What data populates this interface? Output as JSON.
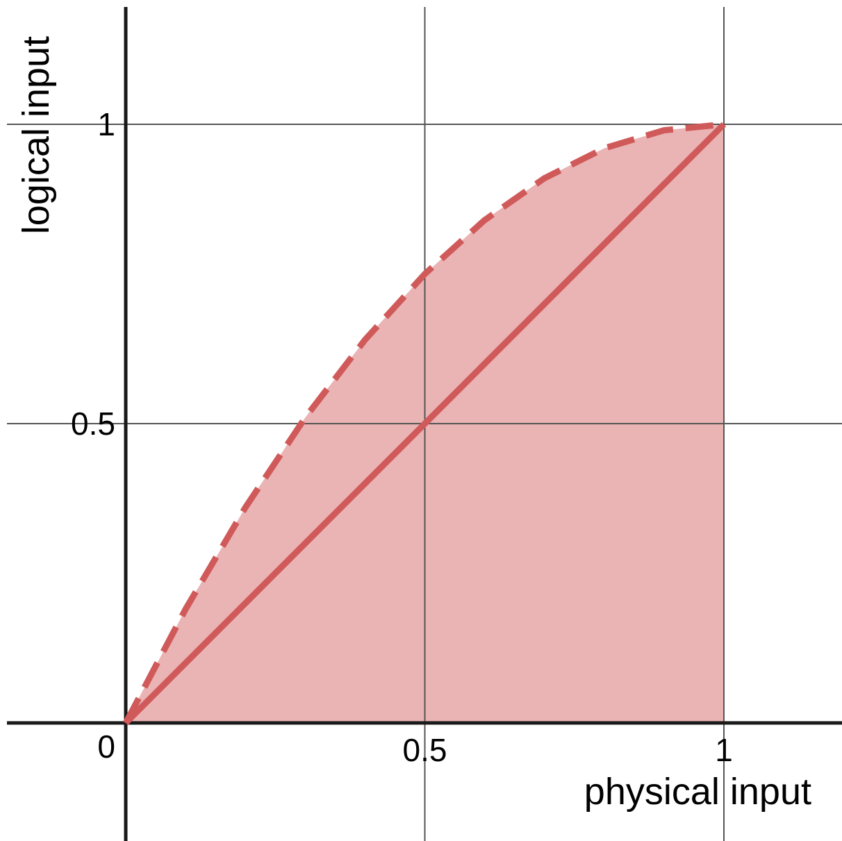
{
  "chart_data": {
    "type": "line",
    "title": "",
    "xlabel": "physical input",
    "ylabel": "logical input",
    "xlim": [
      -0.2,
      1.2
    ],
    "ylim": [
      -0.2,
      1.2
    ],
    "grid": true,
    "x_ticks": [
      0.5,
      1
    ],
    "y_ticks": [
      0.5,
      1
    ],
    "x_tick_labels": [
      "0.5",
      "1"
    ],
    "y_tick_labels": [
      "0.5",
      "1"
    ],
    "origin_label": "0",
    "series": [
      {
        "style": "dashed",
        "x": [
          0,
          0.1,
          0.2,
          0.3,
          0.4,
          0.5,
          0.6,
          0.7,
          0.8,
          0.9,
          1
        ],
        "y": [
          0,
          0.19,
          0.36,
          0.51,
          0.64,
          0.75,
          0.84,
          0.91,
          0.96,
          0.99,
          1
        ]
      },
      {
        "style": "solid",
        "x": [
          0,
          1
        ],
        "y": [
          0,
          1
        ]
      }
    ],
    "shaded_region": "area under dashed curve from x = 0 to x = 1",
    "colors": {
      "series": "#d05a5a",
      "fill": "#eab3b4",
      "axis": "#1a1a1a",
      "grid": "#555555"
    }
  }
}
